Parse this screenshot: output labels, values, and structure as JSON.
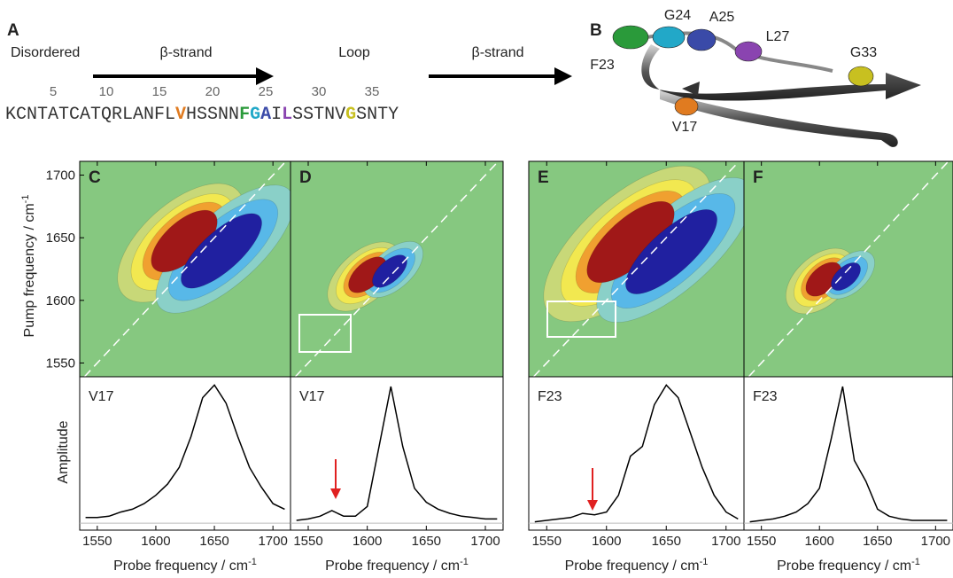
{
  "panel_a": {
    "label": "A",
    "segments": [
      "Disordered",
      "β-strand",
      "Loop",
      "β-strand"
    ],
    "residue_numbers": [
      5,
      10,
      15,
      20,
      25,
      30,
      35
    ],
    "sequence": [
      {
        "text": "KCNTATCATQRLANFL",
        "color": "#333333"
      },
      {
        "text": "V",
        "color": "#e07b20"
      },
      {
        "text": "HSSNN",
        "color": "#333333"
      },
      {
        "text": "F",
        "color": "#2a9a3a"
      },
      {
        "text": "G",
        "color": "#22a8c8"
      },
      {
        "text": "A",
        "color": "#3a4aa8"
      },
      {
        "text": "I",
        "color": "#333333"
      },
      {
        "text": "L",
        "color": "#8a44b0"
      },
      {
        "text": "SSTNV",
        "color": "#333333"
      },
      {
        "text": "G",
        "color": "#c8c020"
      },
      {
        "text": "SNTY",
        "color": "#333333"
      }
    ]
  },
  "panel_b": {
    "label": "B",
    "residues": [
      {
        "name": "F23",
        "color": "#2a9a3a"
      },
      {
        "name": "G24",
        "color": "#22a8c8"
      },
      {
        "name": "A25",
        "color": "#3a4aa8"
      },
      {
        "name": "L27",
        "color": "#8a44b0"
      },
      {
        "name": "G33",
        "color": "#c8c020"
      },
      {
        "name": "V17",
        "color": "#e07b20"
      }
    ]
  },
  "pump_axis": {
    "label": "Pump frequency / cm",
    "label_exp": "-1",
    "lim": [
      1539,
      1711
    ],
    "ticks": [
      1550,
      1600,
      1650,
      1700
    ]
  },
  "amplitude_label": "Amplitude",
  "chart_data": [
    {
      "type": "line",
      "panel": "C",
      "residue": "V17",
      "color": "#e07b20",
      "x": [
        1540,
        1550,
        1560,
        1570,
        1580,
        1590,
        1600,
        1610,
        1620,
        1630,
        1640,
        1650,
        1660,
        1670,
        1680,
        1690,
        1700,
        1710
      ],
      "values": [
        0.04,
        0.04,
        0.05,
        0.08,
        0.1,
        0.14,
        0.2,
        0.28,
        0.4,
        0.62,
        0.9,
        0.99,
        0.86,
        0.62,
        0.4,
        0.26,
        0.14,
        0.1
      ],
      "xlim": [
        1535,
        1715
      ],
      "xticks": [
        1550,
        1600,
        1650,
        1700
      ],
      "ylim": [
        -0.05,
        1.05
      ],
      "x_label": "Probe frequency / cm",
      "x_label_exp": "-1"
    },
    {
      "type": "line",
      "panel": "D",
      "residue": "V17",
      "color": "#e07b20",
      "x": [
        1540,
        1550,
        1560,
        1570,
        1580,
        1590,
        1600,
        1610,
        1620,
        1630,
        1640,
        1650,
        1660,
        1670,
        1680,
        1690,
        1700,
        1710
      ],
      "values": [
        0.02,
        0.03,
        0.05,
        0.09,
        0.05,
        0.05,
        0.12,
        0.55,
        0.98,
        0.55,
        0.25,
        0.15,
        0.1,
        0.07,
        0.05,
        0.04,
        0.03,
        0.03
      ],
      "xlim": [
        1535,
        1715
      ],
      "xticks": [
        1550,
        1600,
        1650,
        1700
      ],
      "ylim": [
        -0.05,
        1.05
      ],
      "x_label": "Probe frequency / cm",
      "x_label_exp": "-1"
    },
    {
      "type": "line",
      "panel": "E",
      "residue": "F23",
      "color": "#2a9a3a",
      "x": [
        1540,
        1550,
        1560,
        1570,
        1580,
        1590,
        1600,
        1610,
        1620,
        1630,
        1640,
        1650,
        1660,
        1670,
        1680,
        1690,
        1700,
        1710
      ],
      "values": [
        0.01,
        0.02,
        0.03,
        0.04,
        0.07,
        0.06,
        0.08,
        0.2,
        0.48,
        0.55,
        0.85,
        0.99,
        0.9,
        0.65,
        0.4,
        0.2,
        0.08,
        0.03
      ],
      "xlim": [
        1535,
        1715
      ],
      "xticks": [
        1550,
        1600,
        1650,
        1700
      ],
      "ylim": [
        -0.05,
        1.05
      ],
      "x_label": "Probe frequency / cm",
      "x_label_exp": "-1"
    },
    {
      "type": "line",
      "panel": "F",
      "residue": "F23",
      "color": "#2a9a3a",
      "x": [
        1540,
        1550,
        1560,
        1570,
        1580,
        1590,
        1600,
        1610,
        1620,
        1630,
        1640,
        1650,
        1660,
        1670,
        1680,
        1690,
        1700,
        1710
      ],
      "values": [
        0.01,
        0.02,
        0.03,
        0.05,
        0.08,
        0.14,
        0.25,
        0.6,
        0.98,
        0.45,
        0.3,
        0.1,
        0.05,
        0.03,
        0.02,
        0.02,
        0.02,
        0.02
      ],
      "xlim": [
        1535,
        1715
      ],
      "xticks": [
        1550,
        1600,
        1650,
        1700
      ],
      "ylim": [
        -0.05,
        1.05
      ],
      "x_label": "Probe frequency / cm",
      "x_label_exp": "-1"
    }
  ]
}
